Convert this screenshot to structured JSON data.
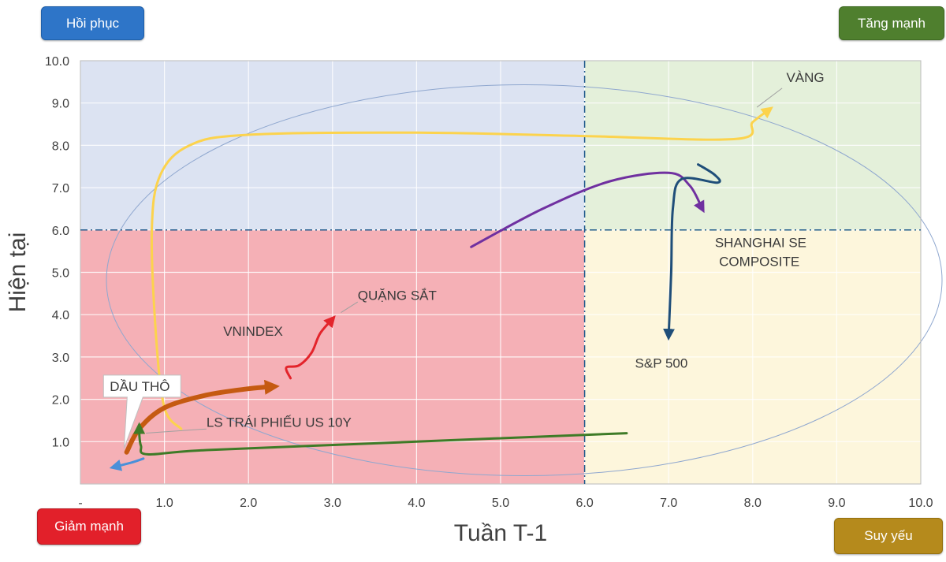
{
  "quadrants": {
    "recovery": "Hồi phục",
    "leading": "Tăng mạnh",
    "lagging": "Giảm mạnh",
    "weakening": "Suy yếu"
  },
  "colors": {
    "recovery_bg": "#dce3f2",
    "leading_bg": "#e4f0da",
    "lagging_bg": "#f5b0b6",
    "weakening_bg": "#fdf6dc",
    "threshold_line": "#1f5a8c"
  },
  "chart_data": {
    "type": "line",
    "title": "",
    "xlabel": "Tuần T-1",
    "ylabel": "Hiện tại",
    "xlim": [
      0,
      10
    ],
    "ylim": [
      0,
      10
    ],
    "x_ticks": [
      "-",
      "1.0",
      "2.0",
      "3.0",
      "4.0",
      "5.0",
      "6.0",
      "7.0",
      "8.0",
      "9.0",
      "10.0"
    ],
    "y_ticks": [
      "",
      "1.0",
      "2.0",
      "3.0",
      "4.0",
      "5.0",
      "6.0",
      "7.0",
      "8.0",
      "9.0",
      "10.0"
    ],
    "thresholds": {
      "x": 6.0,
      "y": 6.0
    },
    "grid": true,
    "series": [
      {
        "name": "VÀNG",
        "color": "#fcd34d",
        "width": 3,
        "points": [
          [
            1.2,
            1.3
          ],
          [
            1.0,
            1.8
          ],
          [
            0.9,
            3.5
          ],
          [
            0.85,
            6.0
          ],
          [
            0.95,
            7.3
          ],
          [
            1.3,
            8.0
          ],
          [
            2.0,
            8.25
          ],
          [
            4.0,
            8.3
          ],
          [
            6.0,
            8.22
          ],
          [
            7.8,
            8.15
          ],
          [
            8.0,
            8.55
          ],
          [
            8.2,
            8.85
          ]
        ]
      },
      {
        "name": "SHANGHAI SE COMPOSITE",
        "color": "#7030a0",
        "width": 3,
        "points": [
          [
            4.65,
            5.6
          ],
          [
            5.5,
            6.5
          ],
          [
            6.3,
            7.15
          ],
          [
            7.0,
            7.35
          ],
          [
            7.25,
            7.05
          ],
          [
            7.4,
            6.5
          ]
        ]
      },
      {
        "name": "S&P 500",
        "color": "#1f4e79",
        "width": 3,
        "points": [
          [
            7.35,
            7.55
          ],
          [
            7.55,
            7.3
          ],
          [
            7.58,
            7.12
          ],
          [
            7.15,
            7.2
          ],
          [
            7.05,
            6.5
          ],
          [
            7.03,
            5.0
          ],
          [
            7.0,
            3.5
          ]
        ]
      },
      {
        "name": "QUẶNG SẮT",
        "color": "#e3242b",
        "width": 3,
        "points": [
          [
            2.5,
            2.5
          ],
          [
            2.45,
            2.75
          ],
          [
            2.6,
            2.8
          ],
          [
            2.75,
            3.1
          ],
          [
            2.85,
            3.55
          ],
          [
            3.0,
            3.9
          ]
        ]
      },
      {
        "name": "VNINDEX",
        "color": "#c55a11",
        "width": 6,
        "points": [
          [
            0.55,
            0.75
          ],
          [
            0.7,
            1.3
          ],
          [
            1.0,
            1.8
          ],
          [
            1.5,
            2.1
          ],
          [
            2.0,
            2.25
          ],
          [
            2.3,
            2.3
          ]
        ]
      },
      {
        "name": "LS TRÁI PHIẾU US 10Y",
        "color": "#3e7b27",
        "width": 3,
        "points": [
          [
            6.5,
            1.2
          ],
          [
            4.0,
            1.0
          ],
          [
            1.5,
            0.8
          ],
          [
            0.8,
            0.7
          ],
          [
            0.72,
            0.9
          ],
          [
            0.7,
            1.2
          ],
          [
            0.7,
            1.35
          ]
        ]
      },
      {
        "name": "DẦU THÔ",
        "color": "#4a90d9",
        "width": 3,
        "points": [
          [
            0.75,
            0.6
          ],
          [
            0.6,
            0.5
          ],
          [
            0.4,
            0.4
          ]
        ]
      }
    ],
    "annotations": [
      {
        "text": "VÀNG",
        "x": 8.4,
        "y": 9.5
      },
      {
        "text": "SHANGHAI SE",
        "x": 7.55,
        "y": 5.6
      },
      {
        "text": "COMPOSITE",
        "x": 7.6,
        "y": 5.15
      },
      {
        "text": "S&P 500",
        "x": 6.6,
        "y": 2.75
      },
      {
        "text": "QUẶNG SẮT",
        "x": 3.3,
        "y": 4.35
      },
      {
        "text": "VNINDEX",
        "x": 1.7,
        "y": 3.5
      },
      {
        "text": "LS TRÁI PHIẾU US 10Y",
        "x": 1.5,
        "y": 1.35
      },
      {
        "text": "DẦU THÔ",
        "x": 0.35,
        "y": 2.2
      }
    ]
  }
}
